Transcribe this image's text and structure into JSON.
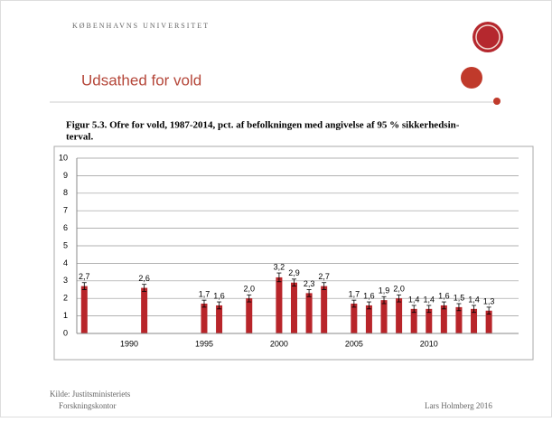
{
  "header": {
    "org": "KØBENHAVNS UNIVERSITET",
    "title": "Udsathed for vold"
  },
  "caption": [
    "Figur 5.3. Ofre for vold, 1987-2014, pct. af befolkningen med angivelse af 95 % sikkerhedsin-",
    "terval."
  ],
  "chart_data": {
    "type": "bar",
    "categories": [
      null,
      null,
      null,
      "1990",
      null,
      null,
      null,
      null,
      "1995",
      null,
      null,
      null,
      null,
      "2000",
      null,
      null,
      null,
      null,
      "2005",
      null,
      null,
      null,
      null,
      "2010",
      null,
      null,
      null,
      null,
      null
    ],
    "values": [
      2.7,
      null,
      null,
      null,
      2.6,
      null,
      null,
      null,
      1.7,
      1.6,
      null,
      2.0,
      null,
      3.2,
      2.9,
      2.3,
      2.7,
      null,
      1.7,
      1.6,
      1.9,
      2.0,
      1.4,
      1.4,
      1.6,
      1.5,
      1.4,
      1.3,
      null
    ],
    "value_labels": [
      "2,7",
      null,
      null,
      null,
      "2,6",
      null,
      null,
      null,
      "1,7",
      "1,6",
      null,
      "2,0",
      null,
      "3,2",
      "2,9",
      "2,3",
      "2,7",
      null,
      "1,7",
      "1,6",
      "1,9",
      "2,0",
      "1,4",
      "1,4",
      "1,6",
      "1,5",
      "1,4",
      "1,3",
      null
    ],
    "errors": [
      0.2,
      null,
      null,
      null,
      0.2,
      null,
      null,
      null,
      0.2,
      0.2,
      null,
      0.2,
      null,
      0.25,
      0.2,
      0.2,
      0.2,
      null,
      0.2,
      0.2,
      0.2,
      0.2,
      0.2,
      0.2,
      0.2,
      0.2,
      0.2,
      0.2,
      null
    ],
    "color": "#b8252a",
    "ylim": [
      0,
      10
    ],
    "yticks": [
      0,
      1,
      2,
      3,
      4,
      5,
      6,
      7,
      8,
      9,
      10
    ],
    "grid": true
  },
  "footer": {
    "source": [
      "Kilde: Justitsministeriets",
      "Forskningskontor"
    ],
    "author": "Lars Holmberg 2016"
  }
}
